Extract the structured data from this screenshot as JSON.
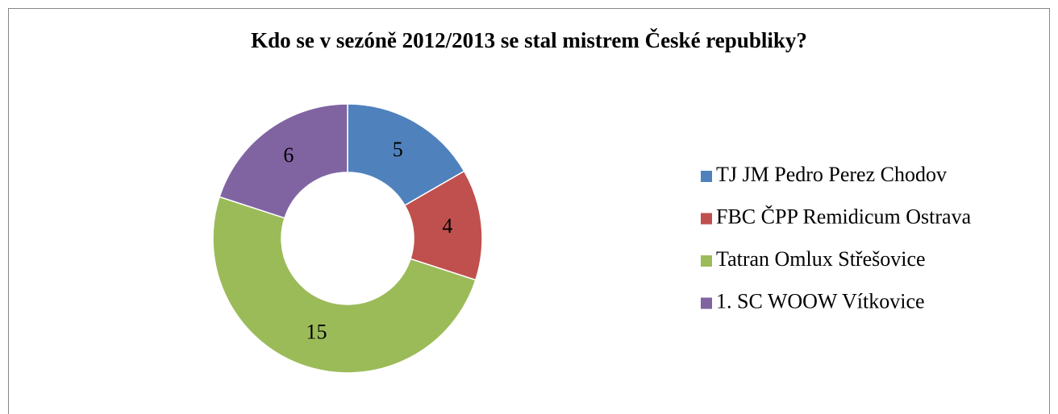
{
  "chart_data": {
    "type": "donut",
    "title": "Kdo se v sezóně 2012/2013 se stal mistrem České republiky?",
    "categories": [
      "TJ JM Pedro Perez Chodov",
      "FBC ČPP Remidicum Ostrava",
      "Tatran Omlux Střešovice",
      "1. SC WOOW Vítkovice"
    ],
    "values": [
      5,
      4,
      15,
      6
    ],
    "colors": [
      "#4f81bd",
      "#c0504d",
      "#9bbb59",
      "#8064a2"
    ],
    "legend": "right"
  }
}
